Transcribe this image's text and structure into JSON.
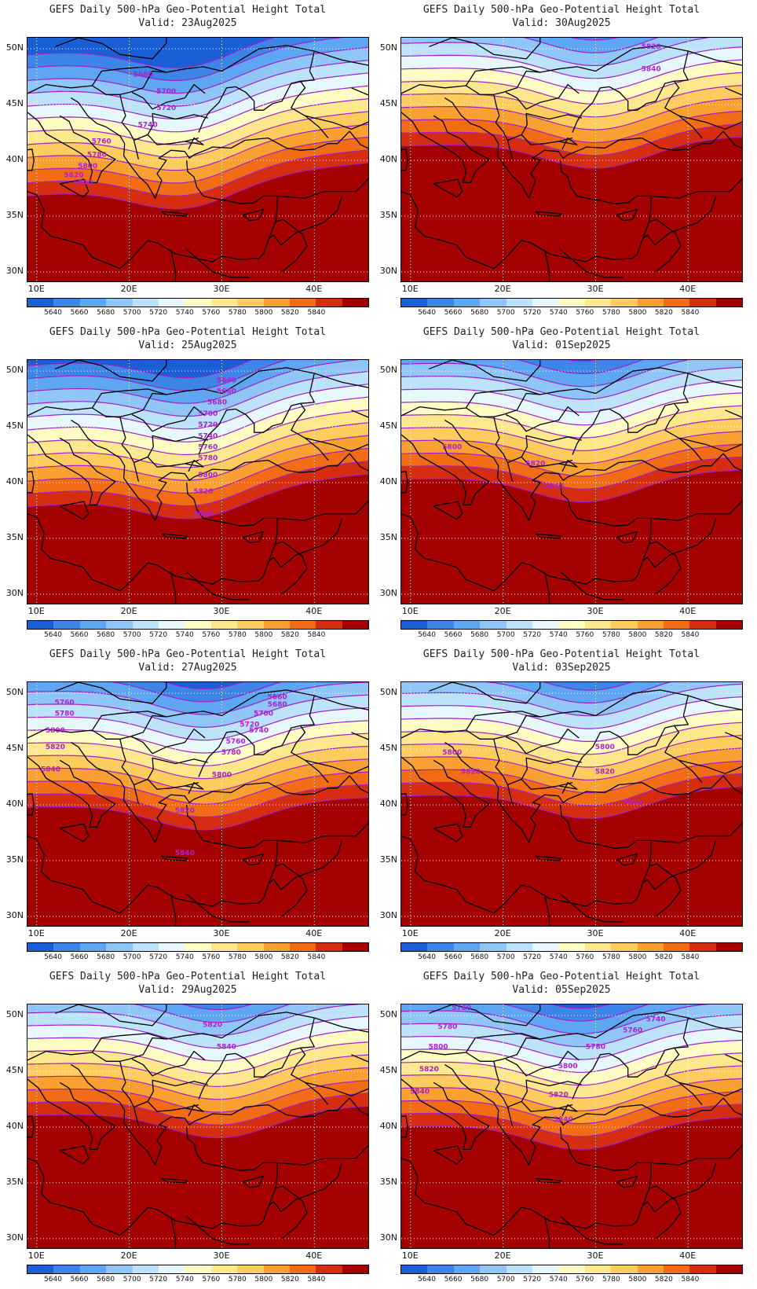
{
  "legend": {
    "colors": [
      "#1a5fd6",
      "#3d86e8",
      "#5ea6f2",
      "#8fc6f7",
      "#bde3fb",
      "#e6f8fe",
      "#fffcc4",
      "#fde88d",
      "#fccd5e",
      "#f9a032",
      "#f26b15",
      "#d62d10",
      "#a50000"
    ],
    "labels": [
      "5640",
      "5660",
      "5680",
      "5700",
      "5720",
      "5740",
      "5760",
      "5780",
      "5800",
      "5820",
      "5840"
    ]
  },
  "axes": {
    "lat_labels": [
      "50N",
      "45N",
      "40N",
      "35N",
      "30N"
    ],
    "lat_values": [
      50,
      45,
      40,
      35,
      30
    ],
    "lon_labels": [
      "10E",
      "20E",
      "30E",
      "40E"
    ],
    "lon_values": [
      10,
      20,
      30,
      40
    ],
    "lat_range": [
      29,
      51
    ],
    "lon_range": [
      9,
      46
    ]
  },
  "panels": [
    {
      "title": "GEFS Daily 500-hPa Geo-Potential Height Total",
      "valid": "Valid: 23Aug2025",
      "shift": 0,
      "contour_labels": [
        {
          "t": "5680",
          "lon": 21.5,
          "lat": 47.5
        },
        {
          "t": "5700",
          "lon": 24,
          "lat": 46
        },
        {
          "t": "5720",
          "lon": 24,
          "lat": 44.5
        },
        {
          "t": "5740",
          "lon": 22,
          "lat": 43
        },
        {
          "t": "5760",
          "lon": 17,
          "lat": 41.5
        },
        {
          "t": "5780",
          "lon": 16.5,
          "lat": 40.3
        },
        {
          "t": "5800",
          "lon": 15.5,
          "lat": 39.3
        },
        {
          "t": "5820",
          "lon": 14,
          "lat": 38.5
        },
        {
          "t": "5840",
          "lon": 15,
          "lat": 37.8
        }
      ]
    },
    {
      "title": "GEFS Daily 500-hPa Geo-Potential Height Total",
      "valid": "Valid: 30Aug2025",
      "shift": 7,
      "contour_labels": [
        {
          "t": "5820",
          "lon": 36,
          "lat": 50
        },
        {
          "t": "5840",
          "lon": 36,
          "lat": 48
        }
      ]
    },
    {
      "title": "GEFS Daily 500-hPa Geo-Potential Height Total",
      "valid": "Valid: 25Aug2025",
      "shift": 2,
      "contour_labels": [
        {
          "t": "5640",
          "lon": 30.5,
          "lat": 49
        },
        {
          "t": "5660",
          "lon": 30.5,
          "lat": 48
        },
        {
          "t": "5680",
          "lon": 29.5,
          "lat": 47
        },
        {
          "t": "5700",
          "lon": 28.5,
          "lat": 46
        },
        {
          "t": "5720",
          "lon": 28.5,
          "lat": 45
        },
        {
          "t": "5740",
          "lon": 28.5,
          "lat": 44
        },
        {
          "t": "5760",
          "lon": 28.5,
          "lat": 43
        },
        {
          "t": "5780",
          "lon": 28.5,
          "lat": 42
        },
        {
          "t": "5800",
          "lon": 28.5,
          "lat": 40.5
        },
        {
          "t": "5820",
          "lon": 28,
          "lat": 39
        },
        {
          "t": "5840",
          "lon": 28,
          "lat": 37
        }
      ]
    },
    {
      "title": "GEFS Daily 500-hPa Geo-Potential Height Total",
      "valid": "Valid: 01Sep2025",
      "shift": 5,
      "contour_labels": [
        {
          "t": "5800",
          "lon": 14.5,
          "lat": 43
        },
        {
          "t": "5820",
          "lon": 23.5,
          "lat": 41.5
        },
        {
          "t": "5840",
          "lon": 25.5,
          "lat": 39.5
        }
      ]
    },
    {
      "title": "GEFS Daily 500-hPa Geo-Potential Height Total",
      "valid": "Valid: 27Aug2025",
      "shift": 4,
      "contour_labels": [
        {
          "t": "5760",
          "lon": 13,
          "lat": 49
        },
        {
          "t": "5780",
          "lon": 13,
          "lat": 48
        },
        {
          "t": "5800",
          "lon": 12,
          "lat": 46.5
        },
        {
          "t": "5820",
          "lon": 12,
          "lat": 45
        },
        {
          "t": "5840",
          "lon": 11.5,
          "lat": 43
        },
        {
          "t": "5660",
          "lon": 36,
          "lat": 49.5
        },
        {
          "t": "5680",
          "lon": 36,
          "lat": 48.8
        },
        {
          "t": "5700",
          "lon": 34.5,
          "lat": 48
        },
        {
          "t": "5720",
          "lon": 33,
          "lat": 47
        },
        {
          "t": "5740",
          "lon": 34,
          "lat": 46.5
        },
        {
          "t": "5760",
          "lon": 31.5,
          "lat": 45.5
        },
        {
          "t": "5780",
          "lon": 31,
          "lat": 44.5
        },
        {
          "t": "5800",
          "lon": 30,
          "lat": 42.5
        },
        {
          "t": "5820",
          "lon": 26,
          "lat": 39.3
        },
        {
          "t": "5840",
          "lon": 26,
          "lat": 35.5
        }
      ]
    },
    {
      "title": "GEFS Daily 500-hPa Geo-Potential Height Total",
      "valid": "Valid: 03Sep2025",
      "shift": 6,
      "contour_labels": [
        {
          "t": "5800",
          "lon": 14.5,
          "lat": 44.5
        },
        {
          "t": "5800",
          "lon": 31,
          "lat": 45
        },
        {
          "t": "5820",
          "lon": 16.5,
          "lat": 42.8
        },
        {
          "t": "5820",
          "lon": 31,
          "lat": 42.8
        },
        {
          "t": "5840",
          "lon": 34,
          "lat": 40
        }
      ]
    },
    {
      "title": "GEFS Daily 500-hPa Geo-Potential Height Total",
      "valid": "Valid: 29Aug2025",
      "shift": 6.5,
      "contour_labels": [
        {
          "t": "5820",
          "lon": 29,
          "lat": 49
        },
        {
          "t": "5840",
          "lon": 30.5,
          "lat": 47
        }
      ]
    },
    {
      "title": "GEFS Daily 500-hPa Geo-Potential Height Total",
      "valid": "Valid: 05Sep2025",
      "shift": 4.5,
      "contour_labels": [
        {
          "t": "5760",
          "lon": 15.5,
          "lat": 50.5
        },
        {
          "t": "5760",
          "lon": 34,
          "lat": 48.5
        },
        {
          "t": "5740",
          "lon": 36.5,
          "lat": 49.5
        },
        {
          "t": "5780",
          "lon": 14,
          "lat": 48.8
        },
        {
          "t": "5780",
          "lon": 30,
          "lat": 47
        },
        {
          "t": "5800",
          "lon": 13,
          "lat": 47
        },
        {
          "t": "5800",
          "lon": 27,
          "lat": 45.3
        },
        {
          "t": "5820",
          "lon": 12,
          "lat": 45
        },
        {
          "t": "5820",
          "lon": 26,
          "lat": 42.7
        },
        {
          "t": "5840",
          "lon": 11,
          "lat": 43
        },
        {
          "t": "5840",
          "lon": 26.5,
          "lat": 40.5
        }
      ]
    }
  ]
}
